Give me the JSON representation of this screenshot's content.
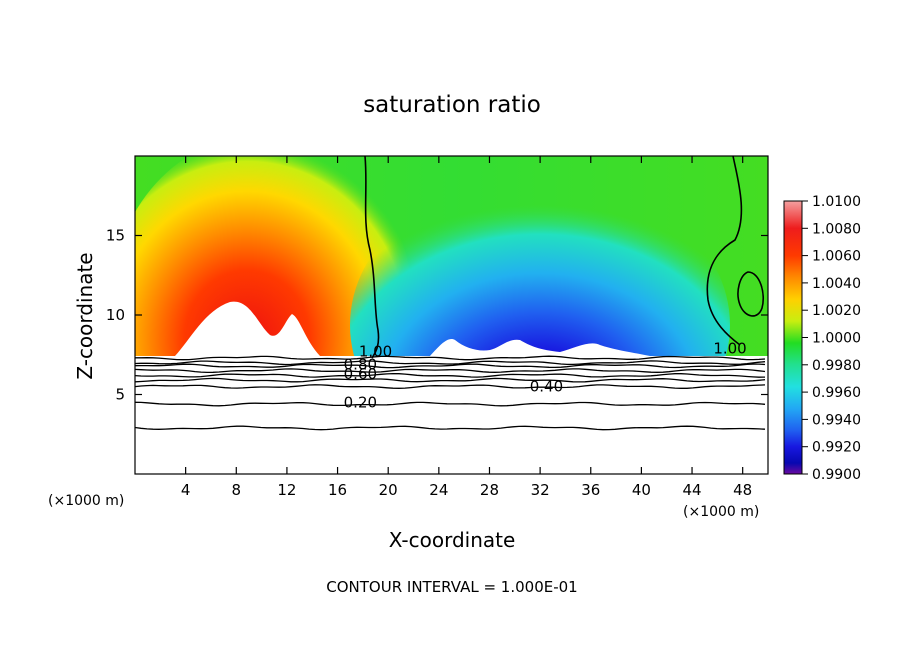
{
  "chart_data": {
    "type": "heatmap",
    "title": "saturation ratio",
    "xlabel": "X-coordinate",
    "ylabel": "Z-coordinate",
    "x_unit_left": "(×1000 m)",
    "x_unit_right": "(×1000 m)",
    "xlim": [
      0,
      50
    ],
    "ylim": [
      0,
      20
    ],
    "x_ticks": [
      4,
      8,
      12,
      16,
      20,
      24,
      28,
      32,
      36,
      40,
      44,
      48
    ],
    "y_ticks": [
      5,
      10,
      15
    ],
    "footer": "CONTOUR INTERVAL = 1.000E-01",
    "colorbar": {
      "labels": [
        "1.0100",
        "1.0080",
        "1.0060",
        "1.0040",
        "1.0020",
        "1.0000",
        "0.9980",
        "0.9960",
        "0.9940",
        "0.9920",
        "0.9900"
      ],
      "colors": [
        "#f4a0a0",
        "#ee1c1c",
        "#ff3a00",
        "#ff8a00",
        "#ffd000",
        "#f0f000",
        "#7ee010",
        "#22dd22",
        "#22e090",
        "#22e0e0",
        "#22a8f4",
        "#2060f0",
        "#1818e0",
        "#0808b0",
        "#500090",
        "#7a0aa0"
      ]
    },
    "contour_labels": [
      {
        "text": "1.00",
        "x": 19.0,
        "y": 7.7
      },
      {
        "text": "0.80",
        "x": 17.8,
        "y": 6.9
      },
      {
        "text": "0.60",
        "x": 17.8,
        "y": 6.3
      },
      {
        "text": "0.40",
        "x": 32.5,
        "y": 5.5
      },
      {
        "text": "0.20",
        "x": 17.8,
        "y": 4.5
      },
      {
        "text": "1.00",
        "x": 47.0,
        "y": 7.9
      }
    ],
    "contour_levels": [
      7.3,
      7.0,
      6.8,
      6.5,
      6.2,
      5.9,
      5.5,
      4.4,
      2.9
    ],
    "cloud_base_z": 7.4
  }
}
